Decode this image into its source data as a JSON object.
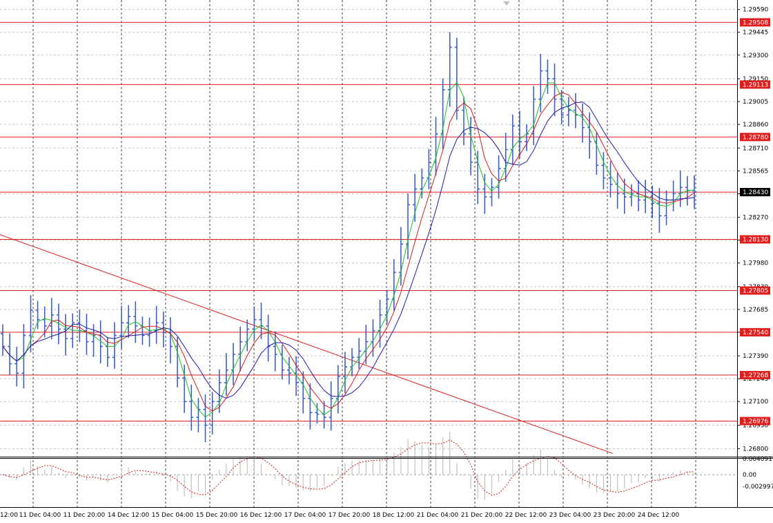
{
  "chart_data": [
    {
      "type": "candlestick",
      "panel": "price",
      "symbol": "",
      "y_ticks": [
        "1.29590",
        "1.29445",
        "1.29300",
        "1.29150",
        "1.29005",
        "1.28860",
        "1.28710",
        "1.28565",
        "1.28420",
        "1.28270",
        "1.28125",
        "1.27980",
        "1.27830",
        "1.27685",
        "1.27540",
        "1.27390",
        "1.27245",
        "1.27100",
        "1.26950",
        "1.26800"
      ],
      "ylim": [
        1.2675,
        1.2965
      ],
      "x_ticks": [
        "12:00",
        "11 Dec 04:00",
        "11 Dec 20:00",
        "14 Dec 12:00",
        "15 Dec 04:00",
        "15 Dec 20:00",
        "16 Dec 12:00",
        "17 Dec 04:00",
        "17 Dec 20:00",
        "18 Dec 12:00",
        "21 Dec 04:00",
        "21 Dec 20:00",
        "22 Dec 12:00",
        "23 Dec 04:00",
        "23 Dec 20:00",
        "24 Dec 12:00"
      ],
      "horizontal_levels": [
        "1.29508",
        "1.29113",
        "1.28780",
        "1.28430",
        "1.28130",
        "1.27805",
        "1.27540",
        "1.27268",
        "1.26976"
      ],
      "current_price": "1.28430",
      "trendline": {
        "start": 1.2816,
        "end": 1.2677
      },
      "close": [
        1.2745,
        1.2734,
        1.2728,
        1.2752,
        1.2768,
        1.2762,
        1.2758,
        1.2765,
        1.2756,
        1.275,
        1.276,
        1.2755,
        1.2748,
        1.2752,
        1.2745,
        1.2738,
        1.2752,
        1.276,
        1.2764,
        1.2758,
        1.2752,
        1.2755,
        1.276,
        1.2754,
        1.2745,
        1.2725,
        1.271,
        1.27,
        1.2705,
        1.2695,
        1.271,
        1.2722,
        1.273,
        1.274,
        1.2748,
        1.2756,
        1.2762,
        1.2758,
        1.2745,
        1.274,
        1.273,
        1.2728,
        1.2722,
        1.2712,
        1.2703,
        1.2702,
        1.27,
        1.2712,
        1.2726,
        1.2732,
        1.2738,
        1.2742,
        1.2748,
        1.2755,
        1.2765,
        1.2775,
        1.2792,
        1.281,
        1.2835,
        1.2845,
        1.2852,
        1.2862,
        1.288,
        1.2908,
        1.2935,
        1.2895,
        1.288,
        1.2862,
        1.2845,
        1.284,
        1.2846,
        1.2858,
        1.287,
        1.2885,
        1.2875,
        1.288,
        1.2902,
        1.292,
        1.2915,
        1.2902,
        1.2892,
        1.2895,
        1.2892,
        1.2884,
        1.2875,
        1.286,
        1.2852,
        1.2848,
        1.2842,
        1.284,
        1.2842,
        1.2838,
        1.284,
        1.2836,
        1.2828,
        1.2838,
        1.2842,
        1.2846,
        1.2844,
        1.2843
      ],
      "indicators": [
        "SMA fast (green)",
        "SMA medium (red)",
        "SMA slow (blue)"
      ]
    },
    {
      "type": "histogram",
      "panel": "oscillator",
      "y_ticks": [
        "0.004091",
        "0.00",
        "-0.002997"
      ],
      "ylim": [
        -0.003,
        0.0041
      ]
    }
  ],
  "colors": {
    "candle": "#3b5fc8",
    "level_line": "#e01e1e",
    "level_label_bg": "#e01e1e",
    "ma_fast": "#18c418",
    "ma_medium": "#d81818",
    "ma_slow": "#1a1ab4",
    "grid": "#000000",
    "osc_bars": "#c0c0c0",
    "osc_signal": "#d81818"
  }
}
